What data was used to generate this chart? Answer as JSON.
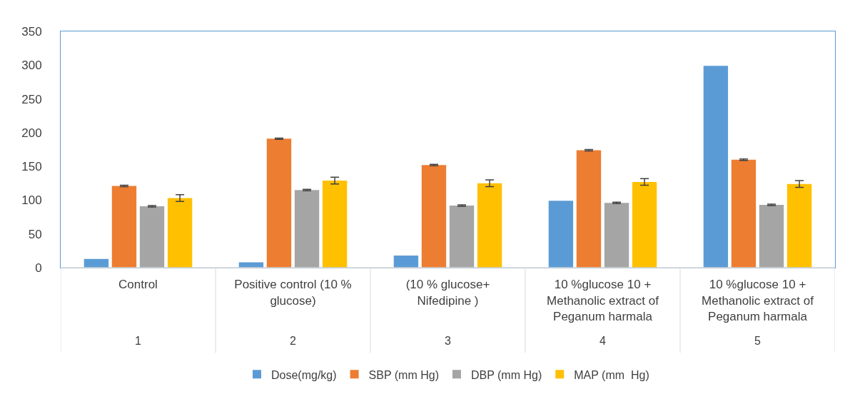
{
  "chart_data": {
    "type": "bar",
    "categories": [
      "Control",
      "Positive control (10 % glucose)",
      "(10 % glucose+ Nifedipine )",
      "10 %glucose 10 + Methanolic extract of Peganum harmala",
      "10 %glucose 10 + Methanolic extract of Peganum harmala"
    ],
    "annotations": [
      "1",
      "2",
      "3",
      "4",
      "5"
    ],
    "series": [
      {
        "name": "Dose(mg/kg)",
        "color": "#5b9bd5",
        "values": [
          13,
          8,
          18,
          99,
          299
        ]
      },
      {
        "name": "SBP (mm Hg)",
        "color": "#ed7d31",
        "values": [
          121,
          191,
          152,
          174,
          160
        ],
        "errors": [
          1,
          1,
          1,
          1,
          1
        ]
      },
      {
        "name": "DBP (mm Hg)",
        "color": "#a5a5a5",
        "values": [
          91,
          115,
          92,
          96,
          93
        ],
        "errors": [
          1,
          1,
          1,
          1,
          1
        ]
      },
      {
        "name": "MAP (mm  Hg)",
        "color": "#ffc000",
        "values": [
          103,
          129,
          125,
          127,
          124
        ],
        "errors": [
          5,
          5,
          5,
          5,
          5
        ]
      }
    ],
    "ylim": [
      0,
      350
    ],
    "yticks": [
      0,
      50,
      100,
      150,
      200,
      250,
      300,
      350
    ],
    "grid": false,
    "legend": "bottom"
  }
}
